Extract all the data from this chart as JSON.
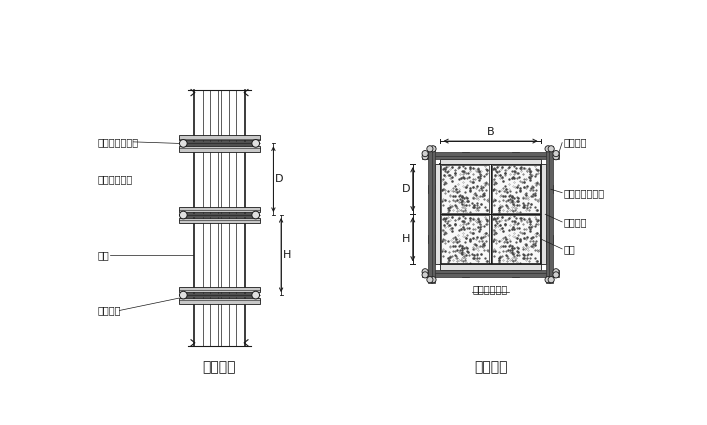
{
  "bg_color": "#ffffff",
  "line_color": "#1a1a1a",
  "title_left": "柱立面图",
  "title_right": "柱剖面图",
  "label_zhugu": "柱箍（圆钢管）",
  "label_zhumeng": "竖愣（方木）",
  "label_mianban": "面板",
  "label_duila": "对拉螺栓",
  "label_B": "B",
  "label_D": "D",
  "label_H": "H",
  "font_size_label": 7,
  "font_size_title": 10,
  "font_size_dim": 8
}
